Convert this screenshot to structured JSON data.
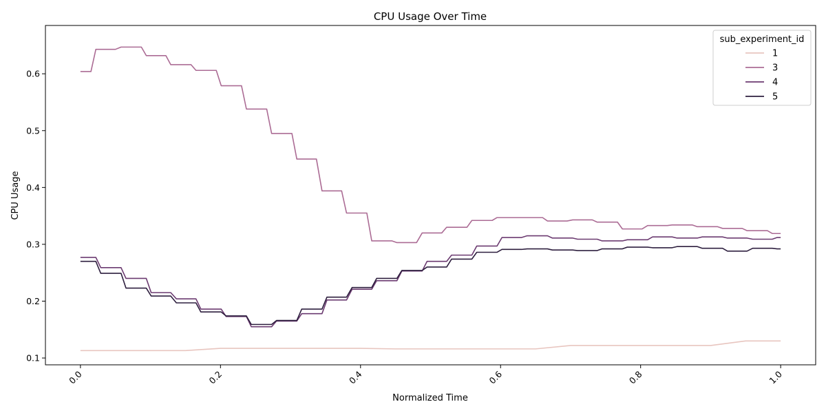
{
  "chart_data": {
    "type": "line",
    "title": "CPU Usage Over Time",
    "xlabel": "Normalized Time",
    "ylabel": "CPU Usage",
    "xlim": [
      -0.05,
      1.05
    ],
    "ylim": [
      0.088,
      0.685
    ],
    "x_ticks": [
      0.0,
      0.2,
      0.4,
      0.6,
      0.8,
      1.0
    ],
    "x_tick_labels": [
      "0.0",
      "0.2",
      "0.4",
      "0.6",
      "0.8",
      "1.0"
    ],
    "y_ticks": [
      0.1,
      0.2,
      0.3,
      0.4,
      0.5,
      0.6
    ],
    "y_tick_labels": [
      "0.1",
      "0.2",
      "0.3",
      "0.4",
      "0.5",
      "0.6"
    ],
    "grid": false,
    "legend": {
      "title": "sub_experiment_id",
      "placement": "top-right"
    },
    "series": [
      {
        "name": "1",
        "color": "#e8c5bf",
        "points": [
          [
            0.0,
            0.113
          ],
          [
            0.15,
            0.113
          ],
          [
            0.2,
            0.117
          ],
          [
            0.4,
            0.117
          ],
          [
            0.45,
            0.116
          ],
          [
            0.65,
            0.116
          ],
          [
            0.7,
            0.122
          ],
          [
            0.9,
            0.122
          ],
          [
            0.95,
            0.13
          ],
          [
            1.0,
            0.13
          ]
        ]
      },
      {
        "name": "3",
        "color": "#ab6b94",
        "points": [
          [
            0.0,
            0.604
          ],
          [
            0.015,
            0.604
          ],
          [
            0.022,
            0.643
          ],
          [
            0.05,
            0.643
          ],
          [
            0.058,
            0.647
          ],
          [
            0.087,
            0.647
          ],
          [
            0.094,
            0.632
          ],
          [
            0.122,
            0.632
          ],
          [
            0.129,
            0.616
          ],
          [
            0.158,
            0.616
          ],
          [
            0.165,
            0.606
          ],
          [
            0.194,
            0.606
          ],
          [
            0.201,
            0.579
          ],
          [
            0.23,
            0.579
          ],
          [
            0.237,
            0.538
          ],
          [
            0.266,
            0.538
          ],
          [
            0.273,
            0.495
          ],
          [
            0.302,
            0.495
          ],
          [
            0.309,
            0.45
          ],
          [
            0.337,
            0.45
          ],
          [
            0.345,
            0.394
          ],
          [
            0.373,
            0.394
          ],
          [
            0.38,
            0.355
          ],
          [
            0.409,
            0.355
          ],
          [
            0.416,
            0.306
          ],
          [
            0.445,
            0.306
          ],
          [
            0.452,
            0.303
          ],
          [
            0.48,
            0.303
          ],
          [
            0.488,
            0.32
          ],
          [
            0.516,
            0.32
          ],
          [
            0.523,
            0.33
          ],
          [
            0.552,
            0.33
          ],
          [
            0.559,
            0.342
          ],
          [
            0.588,
            0.342
          ],
          [
            0.595,
            0.347
          ],
          [
            0.66,
            0.347
          ],
          [
            0.667,
            0.341
          ],
          [
            0.695,
            0.341
          ],
          [
            0.703,
            0.343
          ],
          [
            0.731,
            0.343
          ],
          [
            0.738,
            0.339
          ],
          [
            0.767,
            0.339
          ],
          [
            0.774,
            0.327
          ],
          [
            0.802,
            0.327
          ],
          [
            0.81,
            0.333
          ],
          [
            0.838,
            0.333
          ],
          [
            0.845,
            0.334
          ],
          [
            0.874,
            0.334
          ],
          [
            0.881,
            0.331
          ],
          [
            0.91,
            0.331
          ],
          [
            0.917,
            0.328
          ],
          [
            0.945,
            0.328
          ],
          [
            0.952,
            0.324
          ],
          [
            0.981,
            0.324
          ],
          [
            0.988,
            0.319
          ],
          [
            1.0,
            0.319
          ]
        ]
      },
      {
        "name": "4",
        "color": "#6b3a70",
        "points": [
          [
            0.0,
            0.277
          ],
          [
            0.022,
            0.277
          ],
          [
            0.029,
            0.259
          ],
          [
            0.058,
            0.259
          ],
          [
            0.065,
            0.24
          ],
          [
            0.094,
            0.24
          ],
          [
            0.101,
            0.215
          ],
          [
            0.129,
            0.215
          ],
          [
            0.137,
            0.204
          ],
          [
            0.165,
            0.204
          ],
          [
            0.172,
            0.186
          ],
          [
            0.201,
            0.186
          ],
          [
            0.208,
            0.173
          ],
          [
            0.237,
            0.173
          ],
          [
            0.244,
            0.155
          ],
          [
            0.273,
            0.155
          ],
          [
            0.28,
            0.165
          ],
          [
            0.309,
            0.165
          ],
          [
            0.316,
            0.178
          ],
          [
            0.345,
            0.178
          ],
          [
            0.352,
            0.202
          ],
          [
            0.38,
            0.202
          ],
          [
            0.388,
            0.221
          ],
          [
            0.416,
            0.221
          ],
          [
            0.423,
            0.236
          ],
          [
            0.452,
            0.236
          ],
          [
            0.459,
            0.253
          ],
          [
            0.488,
            0.253
          ],
          [
            0.495,
            0.27
          ],
          [
            0.523,
            0.27
          ],
          [
            0.53,
            0.281
          ],
          [
            0.559,
            0.281
          ],
          [
            0.566,
            0.297
          ],
          [
            0.595,
            0.297
          ],
          [
            0.602,
            0.312
          ],
          [
            0.63,
            0.312
          ],
          [
            0.638,
            0.315
          ],
          [
            0.667,
            0.315
          ],
          [
            0.674,
            0.311
          ],
          [
            0.703,
            0.311
          ],
          [
            0.71,
            0.309
          ],
          [
            0.738,
            0.309
          ],
          [
            0.745,
            0.306
          ],
          [
            0.774,
            0.306
          ],
          [
            0.781,
            0.308
          ],
          [
            0.81,
            0.308
          ],
          [
            0.817,
            0.313
          ],
          [
            0.845,
            0.313
          ],
          [
            0.852,
            0.311
          ],
          [
            0.881,
            0.311
          ],
          [
            0.888,
            0.313
          ],
          [
            0.917,
            0.313
          ],
          [
            0.924,
            0.311
          ],
          [
            0.952,
            0.311
          ],
          [
            0.96,
            0.309
          ],
          [
            0.988,
            0.309
          ],
          [
            0.995,
            0.312
          ],
          [
            1.0,
            0.312
          ]
        ]
      },
      {
        "name": "5",
        "color": "#2d1e3e",
        "points": [
          [
            0.0,
            0.27
          ],
          [
            0.022,
            0.27
          ],
          [
            0.029,
            0.249
          ],
          [
            0.058,
            0.249
          ],
          [
            0.065,
            0.223
          ],
          [
            0.094,
            0.223
          ],
          [
            0.101,
            0.209
          ],
          [
            0.129,
            0.209
          ],
          [
            0.137,
            0.197
          ],
          [
            0.165,
            0.197
          ],
          [
            0.172,
            0.181
          ],
          [
            0.201,
            0.181
          ],
          [
            0.208,
            0.174
          ],
          [
            0.237,
            0.174
          ],
          [
            0.244,
            0.159
          ],
          [
            0.273,
            0.159
          ],
          [
            0.28,
            0.166
          ],
          [
            0.309,
            0.166
          ],
          [
            0.316,
            0.186
          ],
          [
            0.345,
            0.186
          ],
          [
            0.352,
            0.207
          ],
          [
            0.38,
            0.207
          ],
          [
            0.388,
            0.224
          ],
          [
            0.416,
            0.224
          ],
          [
            0.423,
            0.24
          ],
          [
            0.452,
            0.24
          ],
          [
            0.459,
            0.254
          ],
          [
            0.488,
            0.254
          ],
          [
            0.495,
            0.26
          ],
          [
            0.523,
            0.26
          ],
          [
            0.53,
            0.274
          ],
          [
            0.559,
            0.274
          ],
          [
            0.566,
            0.286
          ],
          [
            0.595,
            0.286
          ],
          [
            0.602,
            0.291
          ],
          [
            0.63,
            0.291
          ],
          [
            0.638,
            0.292
          ],
          [
            0.667,
            0.292
          ],
          [
            0.674,
            0.29
          ],
          [
            0.703,
            0.29
          ],
          [
            0.71,
            0.289
          ],
          [
            0.738,
            0.289
          ],
          [
            0.745,
            0.292
          ],
          [
            0.774,
            0.292
          ],
          [
            0.781,
            0.295
          ],
          [
            0.81,
            0.295
          ],
          [
            0.817,
            0.294
          ],
          [
            0.845,
            0.294
          ],
          [
            0.852,
            0.296
          ],
          [
            0.881,
            0.296
          ],
          [
            0.888,
            0.293
          ],
          [
            0.917,
            0.293
          ],
          [
            0.924,
            0.288
          ],
          [
            0.952,
            0.288
          ],
          [
            0.96,
            0.293
          ],
          [
            0.988,
            0.293
          ],
          [
            0.995,
            0.292
          ],
          [
            1.0,
            0.292
          ]
        ]
      }
    ]
  }
}
